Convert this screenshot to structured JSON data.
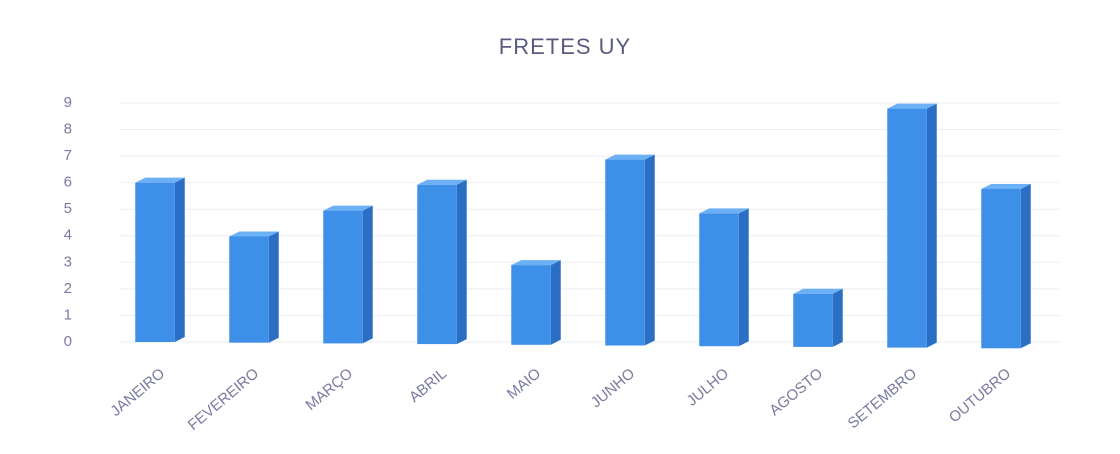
{
  "chart_data": {
    "type": "bar",
    "title": "FRETES UY",
    "categories": [
      "JANEIRO",
      "FEVEREIRO",
      "MARÇO",
      "ABRIL",
      "MAIO",
      "JUNHO",
      "JULHO",
      "AGOSTO",
      "SETEMBRO",
      "OUTUBRO"
    ],
    "values": [
      6,
      4,
      5,
      6,
      3,
      7,
      5,
      2,
      9,
      6
    ],
    "color": "#3d8fe8",
    "ylim": [
      0,
      9
    ],
    "yticks": [
      0,
      1,
      2,
      3,
      4,
      5,
      6,
      7,
      8,
      9
    ],
    "grid": true
  }
}
